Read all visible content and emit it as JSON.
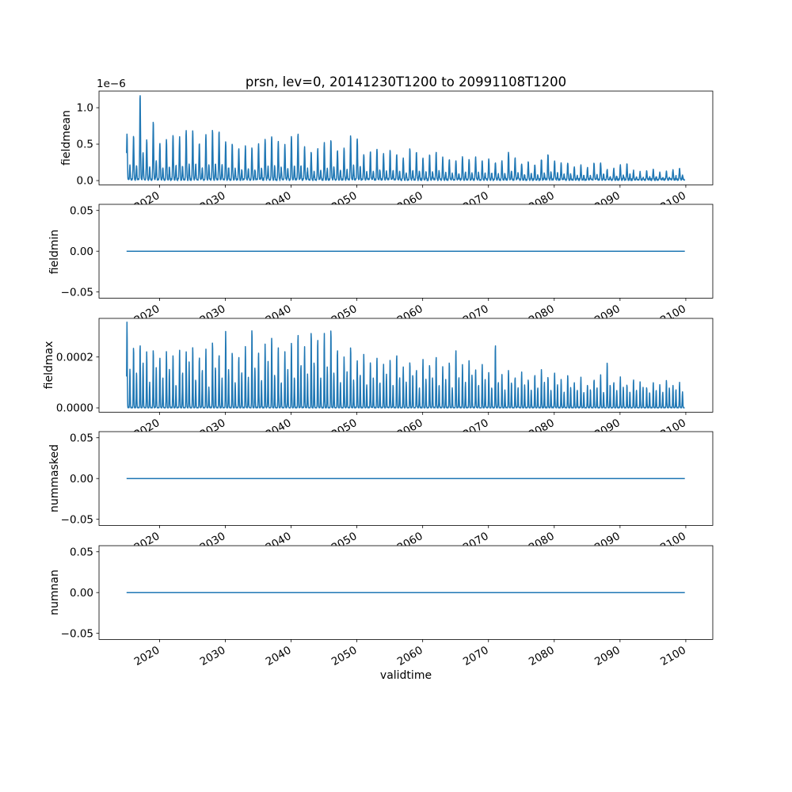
{
  "figure": {
    "background": "#ffffff",
    "line_color": "#1f77b4",
    "axes_edge_color": "#000000"
  },
  "chart_data": [
    {
      "type": "line",
      "title": "prsn, lev=0, 20141230T1200 to 20991108T1200",
      "ylabel": "fieldmean",
      "xlabel": "",
      "offset_text": "1e−6",
      "grid": false,
      "xlim": [
        2010.8,
        2104.1
      ],
      "xticks": [
        2020,
        2030,
        2040,
        2050,
        2060,
        2070,
        2080,
        2090,
        2100
      ],
      "xtick_labels": [
        "2020",
        "2030",
        "2040",
        "2050",
        "2060",
        "2070",
        "2080",
        "2090",
        "2100"
      ],
      "xtick_rotation": 30,
      "ylim": [
        -5.85e-08,
        1.2285e-06
      ],
      "yticks": [
        0.0,
        5e-07,
        1e-06
      ],
      "ytick_labels": [
        "0.0",
        "0.5",
        "1.0"
      ],
      "series": {
        "kind": "annual_spikes",
        "x_start": 2014.99,
        "x_end": 2099.85,
        "year_start": 2015,
        "peaks_per_year": 1,
        "peak_offsets": [
          0.05
        ],
        "peak_sigma": [
          0.085
        ],
        "secondary_peak_ratio": 0.32,
        "base": 1.5e-08,
        "noise": 2e-08,
        "peak_scale": 1e-06,
        "peaks": [
          0.62,
          0.6,
          1.17,
          0.55,
          0.8,
          0.5,
          0.55,
          0.62,
          0.58,
          0.68,
          0.66,
          0.5,
          0.62,
          0.68,
          0.66,
          0.52,
          0.5,
          0.42,
          0.46,
          0.44,
          0.5,
          0.56,
          0.6,
          0.52,
          0.48,
          0.6,
          0.63,
          0.45,
          0.38,
          0.42,
          0.5,
          0.55,
          0.4,
          0.44,
          0.6,
          0.57,
          0.35,
          0.38,
          0.42,
          0.36,
          0.4,
          0.35,
          0.3,
          0.42,
          0.38,
          0.3,
          0.34,
          0.36,
          0.3,
          0.28,
          0.26,
          0.32,
          0.28,
          0.3,
          0.26,
          0.28,
          0.24,
          0.26,
          0.38,
          0.3,
          0.22,
          0.24,
          0.2,
          0.28,
          0.34,
          0.26,
          0.22,
          0.24,
          0.18,
          0.2,
          0.16,
          0.22,
          0.24,
          0.14,
          0.16,
          0.2,
          0.22,
          0.12,
          0.1,
          0.12,
          0.14,
          0.1,
          0.12,
          0.14,
          0.16
        ]
      }
    },
    {
      "type": "line",
      "ylabel": "fieldmin",
      "xlabel": "",
      "grid": false,
      "xlim": [
        2010.8,
        2104.1
      ],
      "xticks": [
        2020,
        2030,
        2040,
        2050,
        2060,
        2070,
        2080,
        2090,
        2100
      ],
      "xtick_labels": [
        "2020",
        "2030",
        "2040",
        "2050",
        "2060",
        "2070",
        "2080",
        "2090",
        "2100"
      ],
      "xtick_rotation": 30,
      "ylim": [
        -0.0575,
        0.0575
      ],
      "yticks": [
        -0.05,
        0.0,
        0.05
      ],
      "ytick_labels": [
        "−0.05",
        "0.00",
        "0.05"
      ],
      "series": {
        "kind": "constant",
        "value": 0.0,
        "x_start": 2014.99,
        "x_end": 2099.85
      }
    },
    {
      "type": "line",
      "ylabel": "fieldmax",
      "xlabel": "",
      "grid": false,
      "xlim": [
        2010.8,
        2104.1
      ],
      "xticks": [
        2020,
        2030,
        2040,
        2050,
        2060,
        2070,
        2080,
        2090,
        2100
      ],
      "xtick_labels": [
        "2020",
        "2030",
        "2040",
        "2050",
        "2060",
        "2070",
        "2080",
        "2090",
        "2100"
      ],
      "xtick_rotation": 30,
      "ylim": [
        -1.675e-05,
        0.00035175
      ],
      "yticks": [
        0.0,
        0.0002
      ],
      "ytick_labels": [
        "0.0000",
        "0.0002"
      ],
      "series": {
        "kind": "annual_spikes",
        "x_start": 2014.99,
        "x_end": 2099.85,
        "year_start": 2015,
        "peaks_per_year": 2,
        "peak_offsets": [
          0.05,
          0.5
        ],
        "peak_sigma": [
          0.06,
          0.06
        ],
        "secondary_peak_ratio": 0,
        "base": 4e-07,
        "noise": 3e-06,
        "peak_scale": 0.0001,
        "peaks": [
          3.35,
          1.5,
          2.4,
          1.4,
          2.5,
          1.8,
          2.2,
          1.0,
          2.3,
          1.6,
          2.0,
          1.2,
          2.2,
          1.5,
          2.1,
          0.9,
          2.3,
          1.4,
          2.2,
          1.8,
          2.4,
          1.1,
          2.0,
          1.5,
          2.3,
          0.8,
          2.6,
          1.6,
          2.1,
          1.2,
          3.0,
          1.5,
          2.2,
          1.0,
          2.0,
          1.4,
          2.4,
          1.2,
          3.1,
          1.6,
          2.2,
          1.1,
          2.5,
          1.8,
          2.8,
          1.3,
          2.4,
          1.0,
          2.2,
          1.5,
          2.6,
          1.2,
          2.9,
          1.7,
          2.4,
          1.3,
          3.0,
          1.8,
          2.7,
          1.2,
          2.9,
          1.6,
          3.1,
          1.4,
          2.3,
          1.0,
          2.0,
          1.4,
          2.4,
          1.1,
          1.9,
          1.3,
          2.1,
          0.9,
          1.8,
          1.2,
          2.0,
          1.0,
          1.7,
          1.3,
          1.9,
          0.9,
          2.1,
          1.2,
          1.6,
          1.0,
          1.8,
          1.3,
          1.5,
          0.8,
          1.9,
          1.1,
          1.7,
          1.2,
          2.0,
          0.9,
          1.6,
          1.1,
          1.8,
          0.8,
          2.3,
          1.2,
          1.7,
          1.0,
          1.9,
          1.3,
          1.5,
          0.9,
          1.7,
          1.1,
          1.4,
          0.8,
          2.5,
          1.0,
          1.3,
          0.7,
          1.5,
          1.0,
          1.2,
          0.8,
          1.4,
          0.9,
          1.1,
          0.7,
          1.3,
          0.8,
          1.5,
          1.0,
          1.2,
          0.7,
          1.4,
          0.9,
          1.1,
          0.6,
          1.3,
          0.8,
          1.0,
          0.7,
          1.2,
          0.6,
          0.9,
          0.7,
          1.1,
          0.8,
          1.3,
          0.6,
          1.8,
          0.9,
          1.0,
          0.7,
          1.2,
          0.8,
          0.9,
          0.6,
          1.1,
          0.7,
          1.0,
          0.8,
          0.8,
          0.6,
          1.0,
          0.7,
          0.9,
          0.6,
          1.1,
          0.8,
          0.9,
          0.7,
          1.0,
          0.6
        ]
      }
    },
    {
      "type": "line",
      "ylabel": "nummasked",
      "xlabel": "",
      "grid": false,
      "xlim": [
        2010.8,
        2104.1
      ],
      "xticks": [
        2020,
        2030,
        2040,
        2050,
        2060,
        2070,
        2080,
        2090,
        2100
      ],
      "xtick_labels": [
        "2020",
        "2030",
        "2040",
        "2050",
        "2060",
        "2070",
        "2080",
        "2090",
        "2100"
      ],
      "xtick_rotation": 30,
      "ylim": [
        -0.0575,
        0.0575
      ],
      "yticks": [
        -0.05,
        0.0,
        0.05
      ],
      "ytick_labels": [
        "−0.05",
        "0.00",
        "0.05"
      ],
      "series": {
        "kind": "constant",
        "value": 0.0,
        "x_start": 2014.99,
        "x_end": 2099.85
      }
    },
    {
      "type": "line",
      "ylabel": "numnan",
      "xlabel": "validtime",
      "grid": false,
      "xlim": [
        2010.8,
        2104.1
      ],
      "xticks": [
        2020,
        2030,
        2040,
        2050,
        2060,
        2070,
        2080,
        2090,
        2100
      ],
      "xtick_labels": [
        "2020",
        "2030",
        "2040",
        "2050",
        "2060",
        "2070",
        "2080",
        "2090",
        "2100"
      ],
      "xtick_rotation": 30,
      "ylim": [
        -0.0575,
        0.0575
      ],
      "yticks": [
        -0.05,
        0.0,
        0.05
      ],
      "ytick_labels": [
        "−0.05",
        "0.00",
        "0.05"
      ],
      "series": {
        "kind": "constant",
        "value": 0.0,
        "x_start": 2014.99,
        "x_end": 2099.85
      }
    }
  ]
}
